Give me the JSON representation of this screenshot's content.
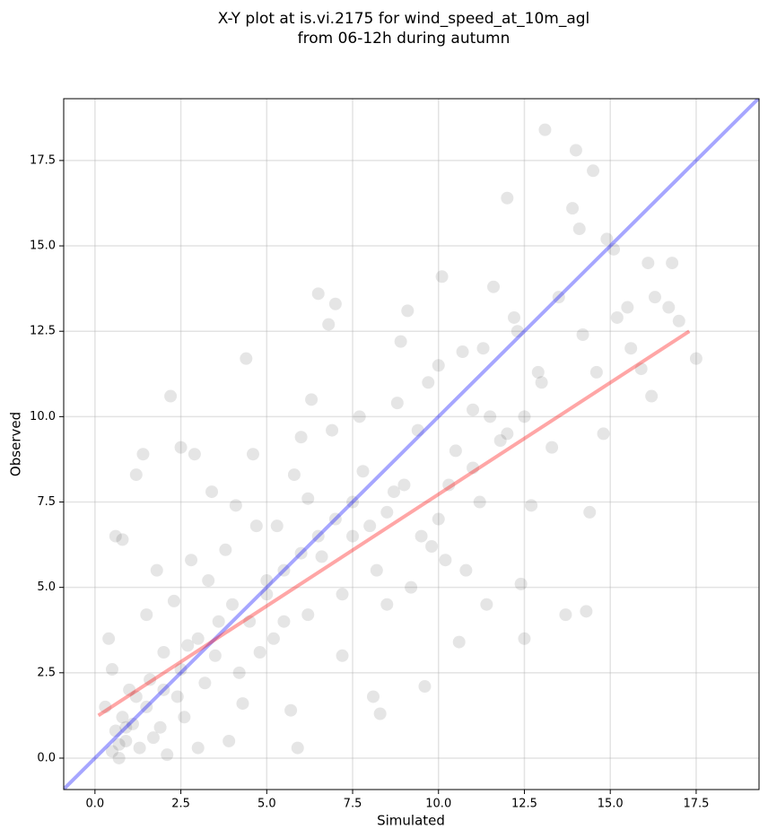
{
  "chart_data": {
    "type": "scatter",
    "title": "X-Y plot at is.vi.2175 for wind_speed_at_10m_agl",
    "subtitle": "from 06-12h during autumn",
    "x_label": "Simulated",
    "y_label": "Observed",
    "xlim": [
      -0.91,
      19.33
    ],
    "ylim": [
      -0.92,
      19.31
    ],
    "xticks": [
      {
        "value": 0,
        "label": "0.0"
      },
      2.5,
      {
        "value": 5,
        "label": "5.0"
      },
      7.5,
      {
        "value": 10,
        "label": "10.0"
      },
      12.5,
      {
        "value": 15,
        "label": "15.0"
      },
      17.5
    ],
    "yticks": [
      {
        "value": 0,
        "label": "0.0"
      },
      2.5,
      {
        "value": 5,
        "label": "5.0"
      },
      7.5,
      {
        "value": 10,
        "label": "10.0"
      },
      12.5,
      {
        "value": 15,
        "label": "15.0"
      },
      17.5
    ],
    "grid": true,
    "series": [
      {
        "type": "scatter",
        "color": "#000000",
        "x": [
          0.5,
          0.6,
          0.7,
          0.8,
          0.9,
          1.0,
          0.3,
          0.4,
          0.6,
          0.8,
          1.2,
          1.4,
          1.5,
          1.8,
          2.0,
          2.2,
          2.5,
          2.9,
          1.1,
          1.3,
          0.5,
          1.6,
          1.9,
          2.1,
          2.4,
          2.7,
          3.0,
          3.2,
          2.3,
          2.8,
          3.4,
          3.6,
          4.1,
          4.4,
          4.6,
          3.9,
          4.3,
          4.8,
          5.0,
          5.3,
          5.5,
          5.7,
          5.9,
          6.0,
          6.3,
          6.5,
          6.8,
          7.0,
          6.2,
          6.6,
          7.2,
          7.5,
          7.8,
          8.1,
          8.3,
          8.5,
          8.7,
          8.9,
          9.1,
          9.4,
          9.6,
          9.8,
          10.0,
          10.1,
          10.3,
          10.6,
          10.8,
          11.0,
          11.2,
          11.4,
          11.6,
          11.8,
          12.0,
          12.2,
          12.4,
          12.5,
          12.7,
          12.9,
          13.1,
          13.3,
          13.5,
          13.7,
          13.9,
          14.0,
          14.1,
          14.2,
          14.3,
          14.4,
          14.5,
          14.6,
          14.8,
          14.9,
          15.2,
          15.5,
          15.6,
          15.9,
          16.1,
          16.2,
          16.3,
          16.8,
          17.0,
          17.5,
          16.7,
          15.1,
          3.0,
          3.5,
          4.0,
          4.5,
          5.0,
          5.5,
          6.0,
          6.5,
          7.0,
          7.5,
          8.0,
          8.5,
          9.0,
          9.5,
          10.0,
          10.5,
          11.0,
          11.5,
          12.0,
          12.5,
          13.0,
          4.2,
          5.2,
          6.2,
          7.2,
          8.2,
          9.2,
          10.2,
          1.5,
          2.0,
          2.5,
          0.9,
          0.7,
          1.2,
          1.7,
          2.6,
          3.3,
          3.8,
          4.7,
          5.8,
          6.9,
          7.7,
          8.8,
          9.7,
          10.7,
          11.3,
          12.3
        ],
        "values": [
          0.2,
          0.8,
          0.0,
          1.2,
          0.5,
          2.0,
          1.5,
          3.5,
          6.5,
          6.4,
          8.3,
          8.9,
          4.2,
          5.5,
          3.1,
          10.6,
          9.1,
          8.9,
          1.0,
          0.3,
          2.6,
          2.3,
          0.9,
          0.1,
          1.8,
          3.3,
          0.3,
          2.2,
          4.6,
          5.8,
          7.8,
          4.0,
          7.4,
          11.7,
          8.9,
          0.5,
          1.6,
          3.1,
          5.2,
          6.8,
          4.0,
          1.4,
          0.3,
          9.4,
          10.5,
          13.6,
          12.7,
          13.3,
          7.6,
          5.9,
          3.0,
          6.5,
          8.4,
          1.8,
          1.3,
          4.5,
          7.8,
          12.2,
          13.1,
          9.6,
          2.1,
          6.2,
          11.5,
          14.1,
          8.0,
          3.4,
          5.5,
          10.2,
          7.5,
          4.5,
          13.8,
          9.3,
          16.4,
          12.9,
          5.1,
          3.5,
          7.4,
          11.3,
          18.4,
          9.1,
          13.5,
          4.2,
          16.1,
          17.8,
          15.5,
          12.4,
          4.3,
          7.2,
          17.2,
          11.3,
          9.5,
          15.2,
          12.9,
          13.2,
          12.0,
          11.4,
          14.5,
          10.6,
          13.5,
          14.5,
          12.8,
          11.7,
          13.2,
          14.9,
          3.5,
          3.0,
          4.5,
          4.0,
          4.8,
          5.5,
          6.0,
          6.5,
          7.0,
          7.5,
          6.8,
          7.2,
          8.0,
          6.5,
          7.0,
          9.0,
          8.5,
          10.0,
          9.5,
          10.0,
          11.0,
          2.5,
          3.5,
          4.2,
          4.8,
          5.5,
          5.0,
          5.8,
          1.5,
          2.0,
          2.6,
          0.9,
          0.4,
          1.8,
          0.6,
          1.2,
          5.2,
          6.1,
          6.8,
          8.3,
          9.6,
          10.0,
          10.4,
          11.0,
          11.9,
          12.0,
          12.5
        ]
      },
      {
        "type": "line",
        "color": "#0000ff",
        "x": [
          -0.91,
          19.33
        ],
        "values": [
          -0.91,
          19.33
        ]
      },
      {
        "type": "line",
        "color": "#ff0000",
        "x": [
          0.1,
          17.3
        ],
        "values": [
          1.25,
          12.5
        ]
      }
    ]
  }
}
